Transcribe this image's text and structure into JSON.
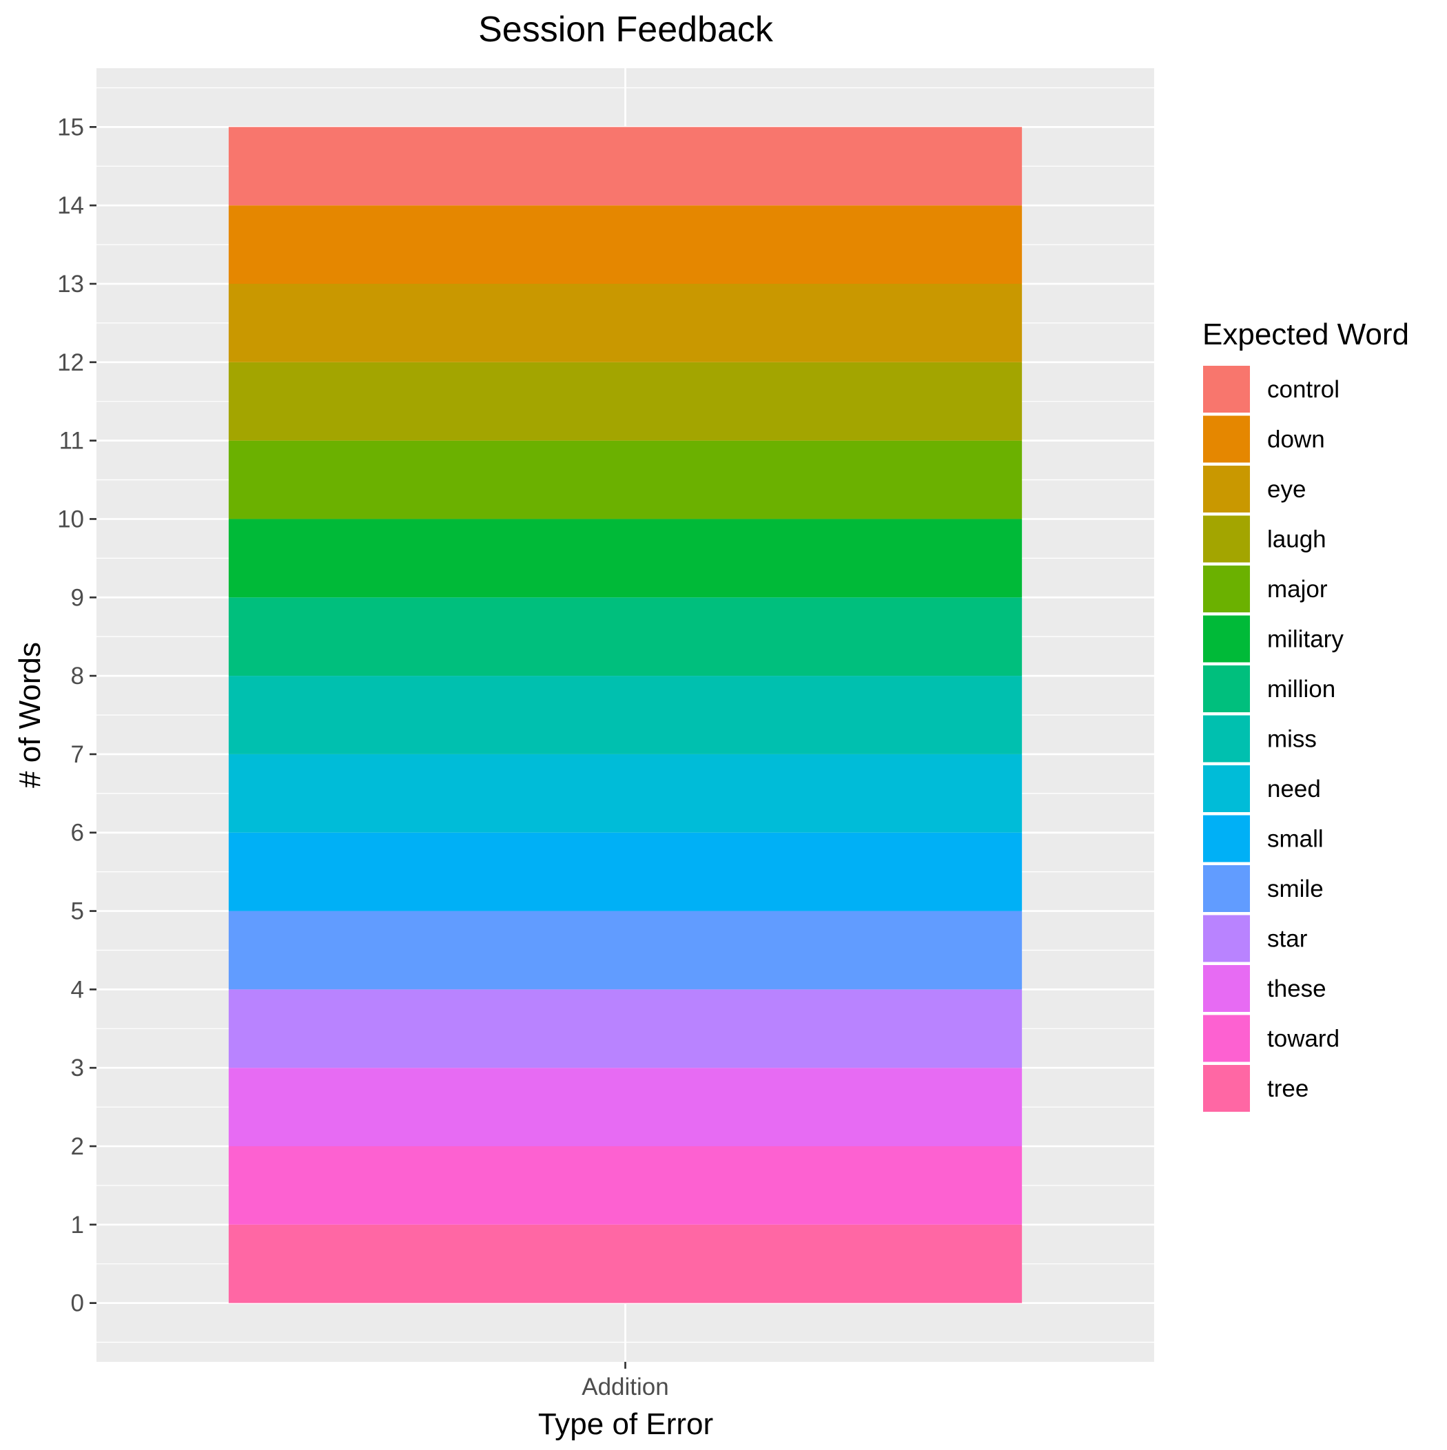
{
  "chart_data": {
    "type": "bar",
    "stacked": true,
    "title": "Session Feedback",
    "xlabel": "Type of Error",
    "ylabel": "# of Words",
    "categories": [
      "Addition"
    ],
    "ylim": [
      -0.75,
      15.75
    ],
    "yticks": [
      0,
      1,
      2,
      3,
      4,
      5,
      6,
      7,
      8,
      9,
      10,
      11,
      12,
      13,
      14,
      15
    ],
    "grid": true,
    "legend": {
      "title": "Expected Word",
      "position": "right"
    },
    "series": [
      {
        "name": "control",
        "values": [
          1
        ],
        "color": "#F8766D"
      },
      {
        "name": "down",
        "values": [
          1
        ],
        "color": "#E58700"
      },
      {
        "name": "eye",
        "values": [
          1
        ],
        "color": "#C99800"
      },
      {
        "name": "laugh",
        "values": [
          1
        ],
        "color": "#A3A500"
      },
      {
        "name": "major",
        "values": [
          1
        ],
        "color": "#6BB100"
      },
      {
        "name": "military",
        "values": [
          1
        ],
        "color": "#00BA38"
      },
      {
        "name": "million",
        "values": [
          1
        ],
        "color": "#00BF7D"
      },
      {
        "name": "miss",
        "values": [
          1
        ],
        "color": "#00C0AF"
      },
      {
        "name": "need",
        "values": [
          1
        ],
        "color": "#00BCD8"
      },
      {
        "name": "small",
        "values": [
          1
        ],
        "color": "#00B0F6"
      },
      {
        "name": "smile",
        "values": [
          1
        ],
        "color": "#619CFF"
      },
      {
        "name": "star",
        "values": [
          1
        ],
        "color": "#B983FF"
      },
      {
        "name": "these",
        "values": [
          1
        ],
        "color": "#E76BF3"
      },
      {
        "name": "toward",
        "values": [
          1
        ],
        "color": "#FD61D1"
      },
      {
        "name": "tree",
        "values": [
          1
        ],
        "color": "#FF67A4"
      }
    ]
  }
}
